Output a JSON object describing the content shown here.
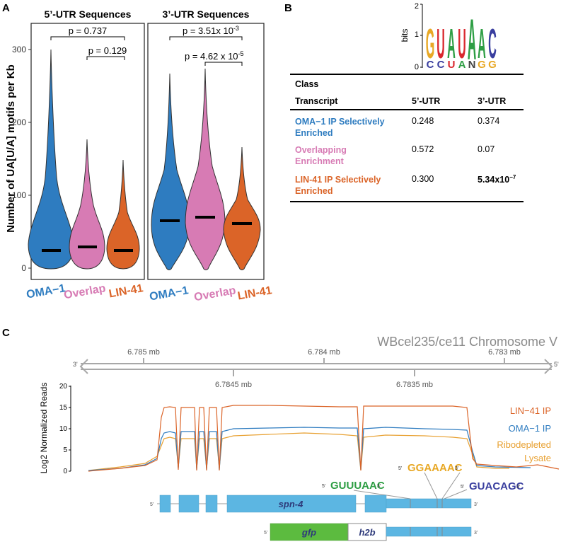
{
  "panels": {
    "a": "A",
    "b": "B",
    "c": "C"
  },
  "violin": {
    "y_axis_label": "Number of UA[U/A] motifs per Kb",
    "y_ticks": [
      "0",
      "100",
      "200",
      "300"
    ],
    "groups": [
      {
        "title": "5’-UTR Sequences",
        "pvals": [
          "p = 0.737",
          "p = 0.129"
        ],
        "labels": [
          "OMA−1",
          "Overlap",
          "LIN-41"
        ]
      },
      {
        "title": "3’-UTR Sequences",
        "pvals": [
          "p = 3.51x 10",
          "p = 4.62 x 10"
        ],
        "pval_exps": [
          "-3",
          "-5"
        ],
        "labels": [
          "OMA−1",
          "Overlap",
          "LIN-41"
        ]
      }
    ],
    "colors": {
      "oma": "#2e7cc0",
      "overlap": "#d77bb4",
      "lin": "#db6428"
    }
  },
  "chart_data": {
    "type": "violin",
    "ylabel": "Number of UA[U/A] motifs per Kb",
    "ylim": [
      0,
      320
    ],
    "categories": [
      "OMA−1",
      "Overlap",
      "LIN-41"
    ],
    "series": [
      {
        "name": "5’-UTR Sequences",
        "medians": [
          24,
          29,
          24
        ],
        "max": [
          300,
          177,
          148
        ]
      },
      {
        "name": "3’-UTR Sequences",
        "medians": [
          66,
          70,
          61
        ],
        "max": [
          267,
          274,
          167
        ]
      }
    ],
    "annotations": [
      "p = 0.737",
      "p = 0.129",
      "p = 3.51x 10-3",
      "p = 4.62 x 10-5"
    ]
  },
  "logo": {
    "ylabel": "bits",
    "ticks": [
      "0",
      "1",
      "2"
    ],
    "top": [
      "G",
      "U",
      "A",
      "U",
      "A",
      "A",
      "C"
    ],
    "bottom": [
      "C",
      "C",
      "U",
      "A",
      "N",
      "G",
      "G"
    ]
  },
  "table": {
    "class_label": "Class",
    "headers": [
      "Transcript",
      "5’-UTR",
      "3’-UTR"
    ],
    "rows": [
      {
        "cls": [
          "OMA−1 IP Selectively",
          "Enriched"
        ],
        "v5": "0.248",
        "v3": "0.374",
        "v3exp": "",
        "color": "#2e7cc0"
      },
      {
        "cls": [
          "Overlapping",
          "Enrichment"
        ],
        "v5": "0.572",
        "v3": "0.07",
        "v3exp": "",
        "color": "#d77bb4"
      },
      {
        "cls": [
          "LIN-41 IP Selectively",
          "Enriched"
        ],
        "v5": "0.300",
        "v3": "5.34x10",
        "v3exp": "−7",
        "color": "#db6428"
      }
    ]
  },
  "track": {
    "title": "WBcel235/ce11 Chromosome V",
    "top_ticks": [
      "6.785 mb",
      "6.784 mb",
      "6.783 mb"
    ],
    "bottom_ticks": [
      "6.7845 mb",
      "6.7835 mb"
    ],
    "prime3": "3'",
    "prime5": "5'",
    "ylabel": "Log2 Normalized Reads",
    "y_ticks": [
      "0",
      "5",
      "10",
      "15",
      "20"
    ],
    "legend": [
      {
        "label": "LIN−41 IP",
        "color": "#db6428"
      },
      {
        "label": "OMA−1 IP",
        "color": "#2e7cc0"
      },
      {
        "label": "Ribodepleted",
        "color": "#e8a030"
      },
      {
        "label": "Lysate",
        "color": "#e8a030"
      }
    ],
    "gene": "spn-4",
    "motifs": [
      "GUUUAAC",
      "GGAAAAC",
      "GUACAGC"
    ],
    "reporter": {
      "gfp": "gfp",
      "h2b": "h2b"
    }
  }
}
